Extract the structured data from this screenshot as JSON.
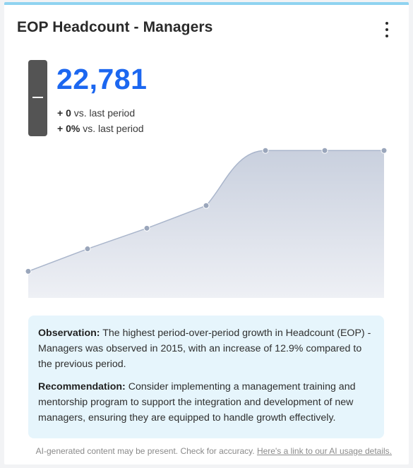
{
  "card": {
    "title": "EOP Headcount - Managers",
    "menu_icon": "more-vertical-icon"
  },
  "kpi": {
    "value": "22,781",
    "delta_abs_value": "+ 0",
    "delta_abs_text": " vs. last period",
    "delta_pct_value": "+ 0%",
    "delta_pct_text": " vs. last period",
    "toggle_icon": "minus-icon"
  },
  "chart_data": {
    "type": "area",
    "points": 7,
    "values": [
      0.175,
      0.323,
      0.459,
      0.608,
      0.971,
      0.971,
      0.971
    ],
    "value_note": "relative levels (no axes printed)",
    "line_color": "#a9b5cb",
    "fill_color": "#ccd3e0",
    "point_color": "#9aa6bb",
    "grid": false,
    "legend": "none"
  },
  "observation": {
    "obs_label": "Observation:",
    "obs_text": " The highest period-over-period growth in Headcount (EOP) - Managers was observed in 2015, with an increase of 12.9% compared to the previous period.",
    "rec_label": "Recommendation:",
    "rec_text": " Consider implementing a management training and mentorship program to support the integration and development of new managers, ensuring they are equipped to handle growth effectively."
  },
  "footer": {
    "disclaimer": "AI-generated content may be present. Check for accuracy. ",
    "link_text": "Here's a link to our AI usage details."
  },
  "colors": {
    "accent": "#1c67f0",
    "top_border": "#8fd3f0",
    "observation_bg": "#e6f5fc"
  }
}
